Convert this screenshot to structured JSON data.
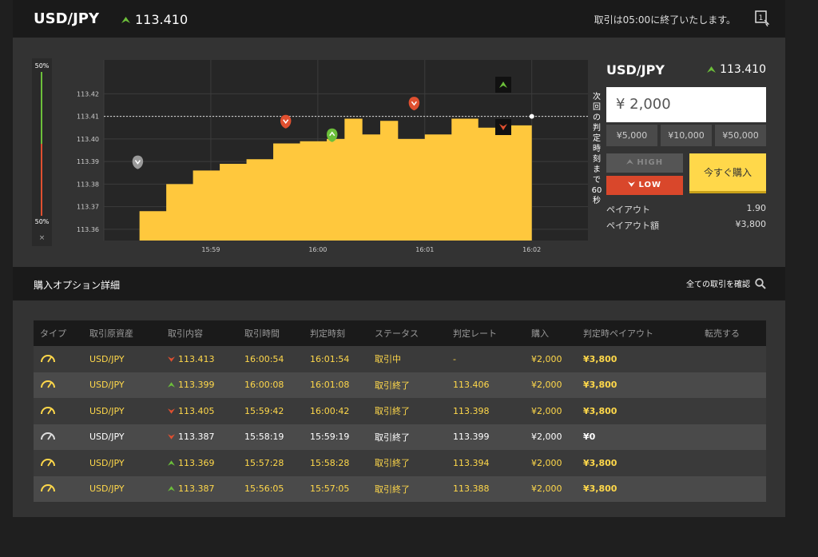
{
  "header": {
    "pair": "USD/JPY",
    "price": "113.410",
    "notice": "取引は05:00に終了いたします。",
    "icon_badge": "1"
  },
  "chart": {
    "bar_top_label": "50%",
    "bar_bottom_label": "50%",
    "bar_close": "×",
    "countdown_text": "次回の判定時刻まで60秒",
    "y_ticks": [
      "113.42",
      "113.41",
      "113.40",
      "113.39",
      "113.38",
      "113.37",
      "113.36"
    ],
    "x_ticks": [
      "15:59",
      "16:00",
      "16:01",
      "16:02"
    ],
    "current_rate": 113.41,
    "colors": {
      "fill": "#ffc83d",
      "up": "#6cbf3a",
      "down": "#e05030"
    }
  },
  "chart_data": {
    "type": "area",
    "title": "",
    "xlabel": "",
    "ylabel": "",
    "x": [
      "15:58:20",
      "15:58:35",
      "15:58:50",
      "15:59:05",
      "15:59:20",
      "15:59:35",
      "15:59:50",
      "16:00:05",
      "16:00:15",
      "16:00:25",
      "16:00:35",
      "16:00:45",
      "16:01:00",
      "16:01:15",
      "16:01:30",
      "16:01:45",
      "16:02:00"
    ],
    "values": [
      113.368,
      113.38,
      113.386,
      113.389,
      113.391,
      113.398,
      113.399,
      113.4,
      113.409,
      113.402,
      113.408,
      113.4,
      113.402,
      113.409,
      113.405,
      113.406,
      113.41
    ],
    "ylim": [
      113.355,
      113.435
    ],
    "grid": true,
    "markers": [
      {
        "x": "15:58:19",
        "y": 113.387,
        "direction": "neutral"
      },
      {
        "x": "15:59:42",
        "y": 113.405,
        "direction": "down"
      },
      {
        "x": "16:00:08",
        "y": 113.399,
        "direction": "up"
      },
      {
        "x": "16:00:54",
        "y": 113.413,
        "direction": "down"
      }
    ]
  },
  "panel": {
    "pair": "USD/JPY",
    "price": "113.410",
    "amount": "¥ 2,000",
    "presets": [
      "¥5,000",
      "¥10,000",
      "¥50,000"
    ],
    "high_label": "HIGH",
    "low_label": "LOW",
    "buy_label": "今すぐ購入",
    "payout_label": "ペイアウト",
    "payout_value": "1.90",
    "payout_amount_label": "ペイアウト額",
    "payout_amount_value": "¥3,800"
  },
  "section": {
    "title": "購入オプション詳細",
    "view_all": "全ての取引を確認"
  },
  "table": {
    "headers": [
      "タイプ",
      "取引原資産",
      "取引内容",
      "取引時間",
      "判定時刻",
      "ステータス",
      "判定レート",
      "購入",
      "判定時ペイアウト",
      "転売する"
    ],
    "rows": [
      {
        "asset": "USD/JPY",
        "direction": "down",
        "rate": "113.413",
        "time": "16:00:54",
        "judge": "16:01:54",
        "status": "取引中",
        "judge_rate": "-",
        "buy": "¥2,000",
        "payout": "¥3,800",
        "win": true
      },
      {
        "asset": "USD/JPY",
        "direction": "up",
        "rate": "113.399",
        "time": "16:00:08",
        "judge": "16:01:08",
        "status": "取引終了",
        "judge_rate": "113.406",
        "buy": "¥2,000",
        "payout": "¥3,800",
        "win": true
      },
      {
        "asset": "USD/JPY",
        "direction": "down",
        "rate": "113.405",
        "time": "15:59:42",
        "judge": "16:00:42",
        "status": "取引終了",
        "judge_rate": "113.398",
        "buy": "¥2,000",
        "payout": "¥3,800",
        "win": true
      },
      {
        "asset": "USD/JPY",
        "direction": "down",
        "rate": "113.387",
        "time": "15:58:19",
        "judge": "15:59:19",
        "status": "取引終了",
        "judge_rate": "113.399",
        "buy": "¥2,000",
        "payout": "¥0",
        "win": false
      },
      {
        "asset": "USD/JPY",
        "direction": "up",
        "rate": "113.369",
        "time": "15:57:28",
        "judge": "15:58:28",
        "status": "取引終了",
        "judge_rate": "113.394",
        "buy": "¥2,000",
        "payout": "¥3,800",
        "win": true
      },
      {
        "asset": "USD/JPY",
        "direction": "up",
        "rate": "113.387",
        "time": "15:56:05",
        "judge": "15:57:05",
        "status": "取引終了",
        "judge_rate": "113.388",
        "buy": "¥2,000",
        "payout": "¥3,800",
        "win": true
      }
    ]
  }
}
